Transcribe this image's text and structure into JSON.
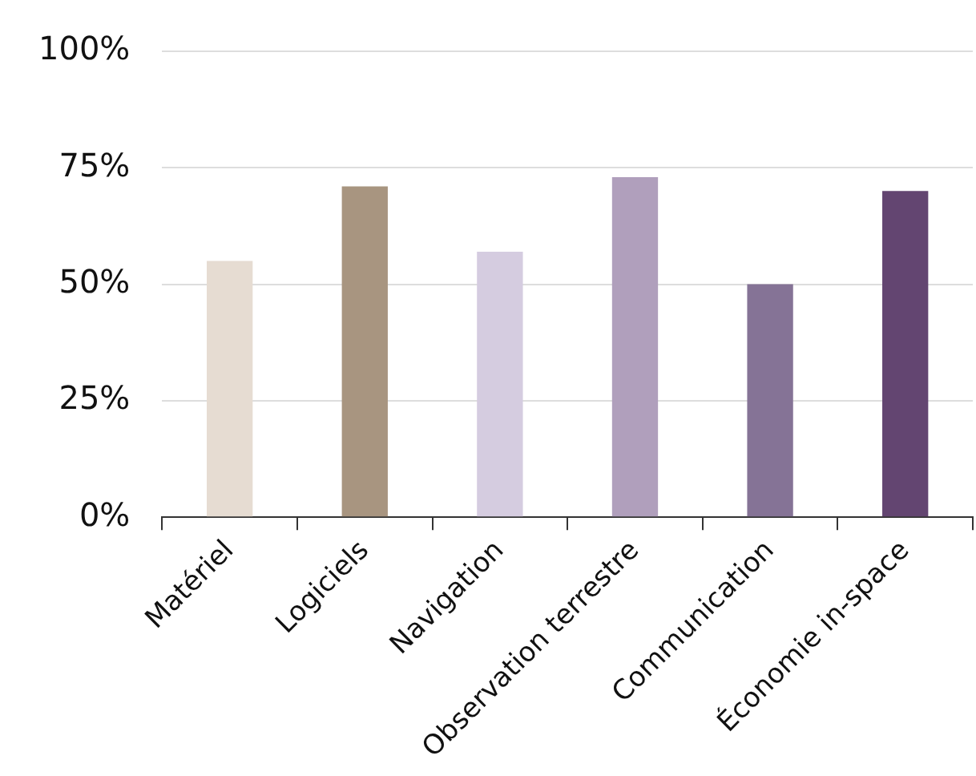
{
  "chart_data": {
    "type": "bar",
    "categories": [
      "Matériel",
      "Logiciels",
      "Navigation",
      "Observation terrestre",
      "Communication",
      "Économie in-space"
    ],
    "values": [
      55,
      71,
      57,
      73,
      50,
      70
    ],
    "colors": [
      "#e6dcd2",
      "#a89580",
      "#d5cce0",
      "#b09fbc",
      "#857396",
      "#634571"
    ],
    "ylim": [
      0,
      100
    ],
    "yticks": [
      {
        "value": 0,
        "label": "0%"
      },
      {
        "value": 25,
        "label": "25%"
      },
      {
        "value": 50,
        "label": "50%"
      },
      {
        "value": 75,
        "label": "75%"
      },
      {
        "value": 100,
        "label": "100%"
      }
    ],
    "grid": "y",
    "legend": false
  }
}
